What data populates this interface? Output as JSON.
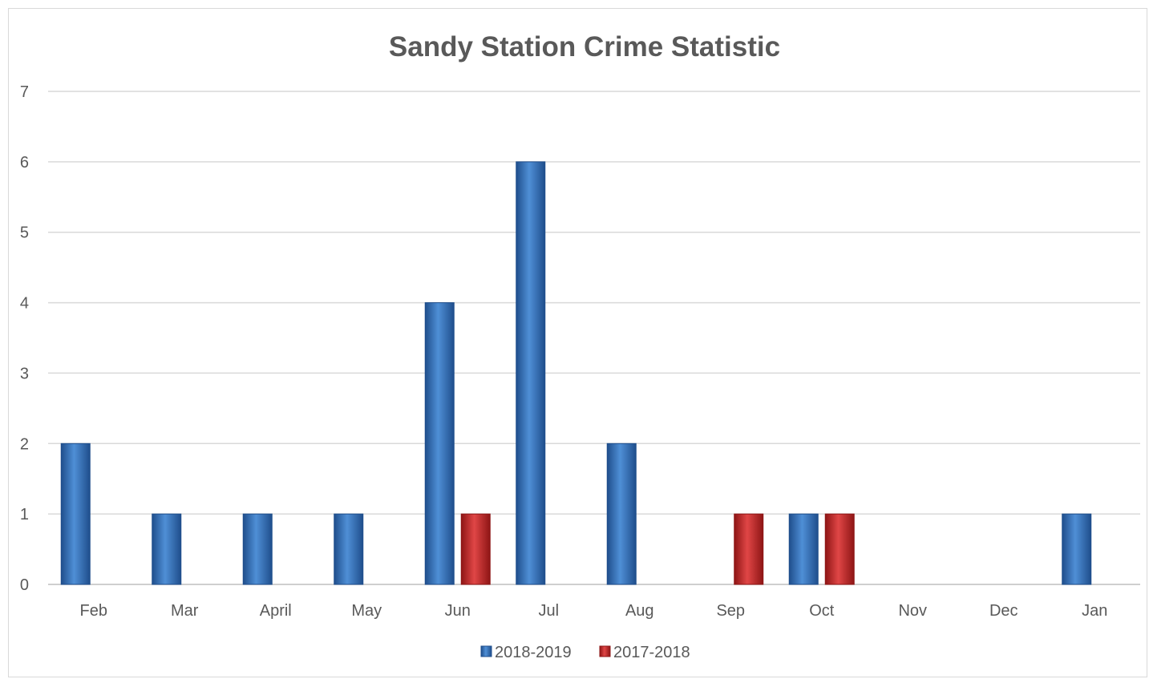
{
  "chart_data": {
    "type": "bar",
    "title": "Sandy Station Crime Statistic",
    "xlabel": "",
    "ylabel": "",
    "categories": [
      "Feb",
      "Mar",
      "April",
      "May",
      "Jun",
      "Jul",
      "Aug",
      "Sep",
      "Oct",
      "Nov",
      "Dec",
      "Jan"
    ],
    "series": [
      {
        "name": "2018-2019",
        "color": "#2e75b6",
        "values": [
          2,
          1,
          1,
          1,
          4,
          6,
          2,
          0,
          1,
          0,
          0,
          1
        ]
      },
      {
        "name": "2017-2018",
        "color": "#c00000",
        "values": [
          0,
          0,
          0,
          0,
          1,
          0,
          0,
          1,
          1,
          0,
          0,
          0
        ]
      }
    ],
    "ylim": [
      0,
      7
    ],
    "yticks": [
      0,
      1,
      2,
      3,
      4,
      5,
      6,
      7
    ],
    "grid": true,
    "legend": "bottom"
  }
}
